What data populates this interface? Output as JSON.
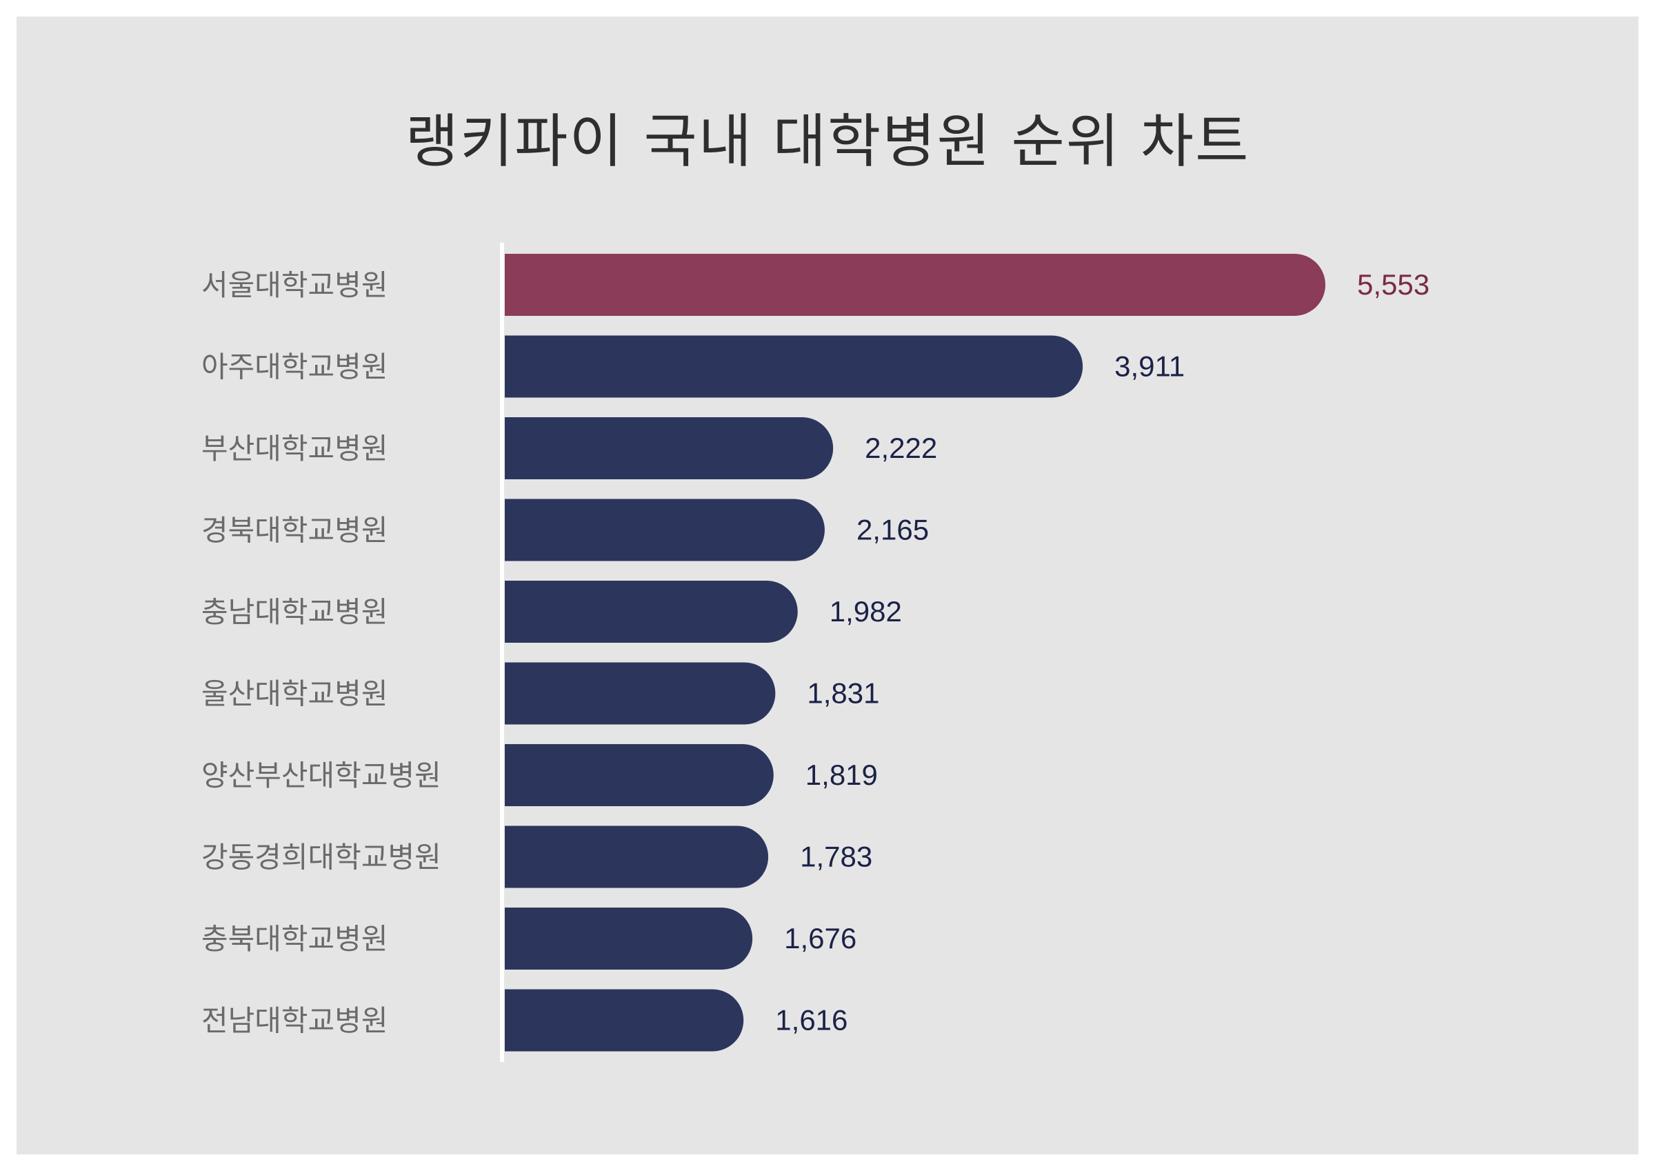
{
  "chart_data": {
    "type": "bar",
    "orientation": "horizontal",
    "title": "랭키파이 국내 대학병원 순위 차트",
    "categories": [
      "서울대학교병원",
      "아주대학교병원",
      "부산대학교병원",
      "경북대학교병원",
      "충남대학교병원",
      "울산대학교병원",
      "양산부산대학교병원",
      "강동경희대학교병원",
      "충북대학교병원",
      "전남대학교병원"
    ],
    "values": [
      5553,
      3911,
      2222,
      2165,
      1982,
      1831,
      1819,
      1783,
      1676,
      1616
    ],
    "value_labels": [
      "5,553",
      "3,911",
      "2,222",
      "2,165",
      "1,982",
      "1,831",
      "1,819",
      "1,783",
      "1,676",
      "1,616"
    ],
    "highlight_index": 0,
    "colors": {
      "bar": "#2c365c",
      "highlight_bar": "#8a3c58",
      "value_text": "#1b2246",
      "highlight_value_text": "#7a2a46",
      "background": "#e6e5e6",
      "axis": "#ffffff"
    },
    "xlabel": "",
    "ylabel": "",
    "xlim": [
      0,
      5553
    ],
    "grid": false,
    "legend": "none"
  }
}
